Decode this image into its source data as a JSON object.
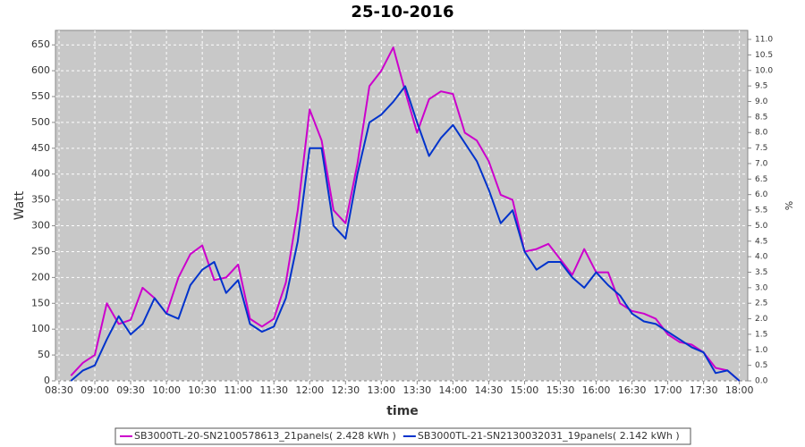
{
  "chart_data": {
    "type": "line",
    "title": "25-10-2016",
    "xlabel": "time",
    "ylabel": "Watt",
    "y2label": "%",
    "x": [
      "08:40",
      "08:50",
      "09:00",
      "09:10",
      "09:20",
      "09:30",
      "09:40",
      "09:50",
      "10:00",
      "10:10",
      "10:20",
      "10:30",
      "10:40",
      "10:50",
      "11:00",
      "11:10",
      "11:20",
      "11:30",
      "11:40",
      "11:50",
      "12:00",
      "12:10",
      "12:20",
      "12:30",
      "12:40",
      "12:50",
      "13:00",
      "13:10",
      "13:20",
      "13:30",
      "13:40",
      "13:50",
      "14:00",
      "14:10",
      "14:20",
      "14:30",
      "14:40",
      "14:50",
      "15:00",
      "15:10",
      "15:20",
      "15:30",
      "15:40",
      "15:50",
      "16:00",
      "16:10",
      "16:20",
      "16:30",
      "16:40",
      "16:50",
      "17:00",
      "17:10",
      "17:20",
      "17:30",
      "17:40",
      "17:50",
      "18:00"
    ],
    "series": [
      {
        "name": "SB3000TL-20-SN2100578613_21panels( 2.428 kWh )",
        "color": "#cc00cc",
        "values": [
          10,
          35,
          50,
          150,
          110,
          118,
          180,
          160,
          130,
          200,
          245,
          262,
          195,
          200,
          225,
          120,
          105,
          120,
          190,
          330,
          525,
          465,
          330,
          305,
          420,
          570,
          600,
          645,
          560,
          480,
          545,
          560,
          555,
          480,
          465,
          425,
          360,
          350,
          250,
          255,
          265,
          235,
          205,
          255,
          210,
          210,
          150,
          135,
          130,
          120,
          90,
          75,
          70,
          55,
          25,
          20,
          0
        ]
      },
      {
        "name": "SB3000TL-21-SN2130032031_19panels( 2.142 kWh )",
        "color": "#0033cc",
        "values": [
          0,
          20,
          30,
          80,
          125,
          90,
          110,
          160,
          130,
          120,
          185,
          215,
          230,
          170,
          195,
          110,
          95,
          105,
          160,
          270,
          450,
          450,
          300,
          275,
          400,
          500,
          515,
          540,
          570,
          500,
          435,
          470,
          495,
          460,
          425,
          370,
          305,
          330,
          250,
          215,
          230,
          230,
          200,
          180,
          210,
          185,
          165,
          130,
          115,
          110,
          95,
          80,
          65,
          55,
          15,
          20,
          0
        ]
      }
    ],
    "xlim": [
      "08:27",
      "18:07"
    ],
    "xticks": [
      "08:30",
      "09:00",
      "09:30",
      "10:00",
      "10:30",
      "11:00",
      "11:30",
      "12:00",
      "12:30",
      "13:00",
      "13:30",
      "14:00",
      "14:30",
      "15:00",
      "15:30",
      "16:00",
      "16:30",
      "17:00",
      "17:30",
      "18:00"
    ],
    "ylim": [
      0,
      678
    ],
    "yticks": [
      0,
      50,
      100,
      150,
      200,
      250,
      300,
      350,
      400,
      450,
      500,
      550,
      600,
      650
    ],
    "y2lim": [
      0,
      11.29
    ],
    "y2ticks": [
      {
        "value": 0,
        "label": "0.0"
      },
      0.5,
      {
        "value": 1,
        "label": "1.0"
      },
      1.5,
      {
        "value": 2,
        "label": "2.0"
      },
      2.5,
      {
        "value": 3,
        "label": "3.0"
      },
      3.5,
      {
        "value": 4,
        "label": "4.0"
      },
      4.5,
      {
        "value": 5,
        "label": "5.0"
      },
      5.5,
      {
        "value": 6,
        "label": "6.0"
      },
      6.5,
      {
        "value": 7,
        "label": "7.0"
      },
      7.5,
      {
        "value": 8,
        "label": "8.0"
      },
      8.5,
      {
        "value": 9,
        "label": "9.0"
      },
      9.5,
      {
        "value": 10,
        "label": "10.0"
      },
      10.5,
      {
        "value": 11,
        "label": "11.0"
      }
    ],
    "grid": true,
    "legend": "bottom"
  }
}
